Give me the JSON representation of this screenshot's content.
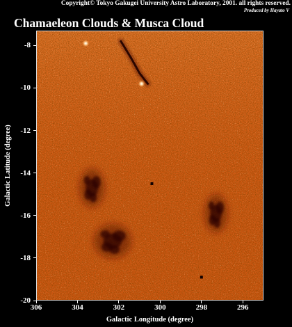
{
  "copyright": "Copyright© Tokyo Gakugei University Astro Laboratory, 2001. all rights reserved.",
  "producer": "Produced by Hayato V",
  "title": "Chamaeleon Clouds & Musca Cloud",
  "colors": {
    "background": "#000000",
    "map_base": "#d45a14",
    "map_bright": "#ffb070",
    "cloud_dark": "#2a0600",
    "text": "#ffffff"
  },
  "chart_data": {
    "type": "heatmap",
    "xlabel": "Galactic Longitude (degree)",
    "ylabel": "Galactic Latitude (degree)",
    "xlim": [
      306,
      295
    ],
    "ylim": [
      -20,
      -7.3
    ],
    "x_ticks": [
      306,
      304,
      302,
      300,
      298,
      296
    ],
    "y_ticks": [
      -8,
      -10,
      -12,
      -14,
      -16,
      -18,
      -20
    ],
    "x_tick_labels": [
      "306",
      "304",
      "302",
      "300",
      "298",
      "296"
    ],
    "y_tick_labels": [
      "-8",
      "-10",
      "-12",
      "-14",
      "-16",
      "-18",
      "-20"
    ],
    "features": [
      {
        "kind": "dark-filament",
        "points": [
          [
            301.9,
            -7.8
          ],
          [
            301.4,
            -8.6
          ],
          [
            301.0,
            -9.3
          ],
          [
            300.6,
            -9.8
          ]
        ]
      },
      {
        "kind": "dark-cloud",
        "center": [
          303.3,
          -14.7
        ],
        "rx": 0.6,
        "ry": 0.9
      },
      {
        "kind": "dark-cloud",
        "center": [
          302.3,
          -17.2
        ],
        "rx": 0.9,
        "ry": 0.8
      },
      {
        "kind": "dark-cloud",
        "center": [
          297.3,
          -15.9
        ],
        "rx": 0.55,
        "ry": 0.9
      },
      {
        "kind": "bright-star",
        "center": [
          300.9,
          -9.8
        ]
      },
      {
        "kind": "bright-star",
        "center": [
          303.6,
          -7.9
        ]
      },
      {
        "kind": "dark-spot",
        "center": [
          300.4,
          -14.5
        ]
      },
      {
        "kind": "dark-spot",
        "center": [
          298.0,
          -18.9
        ]
      }
    ]
  }
}
